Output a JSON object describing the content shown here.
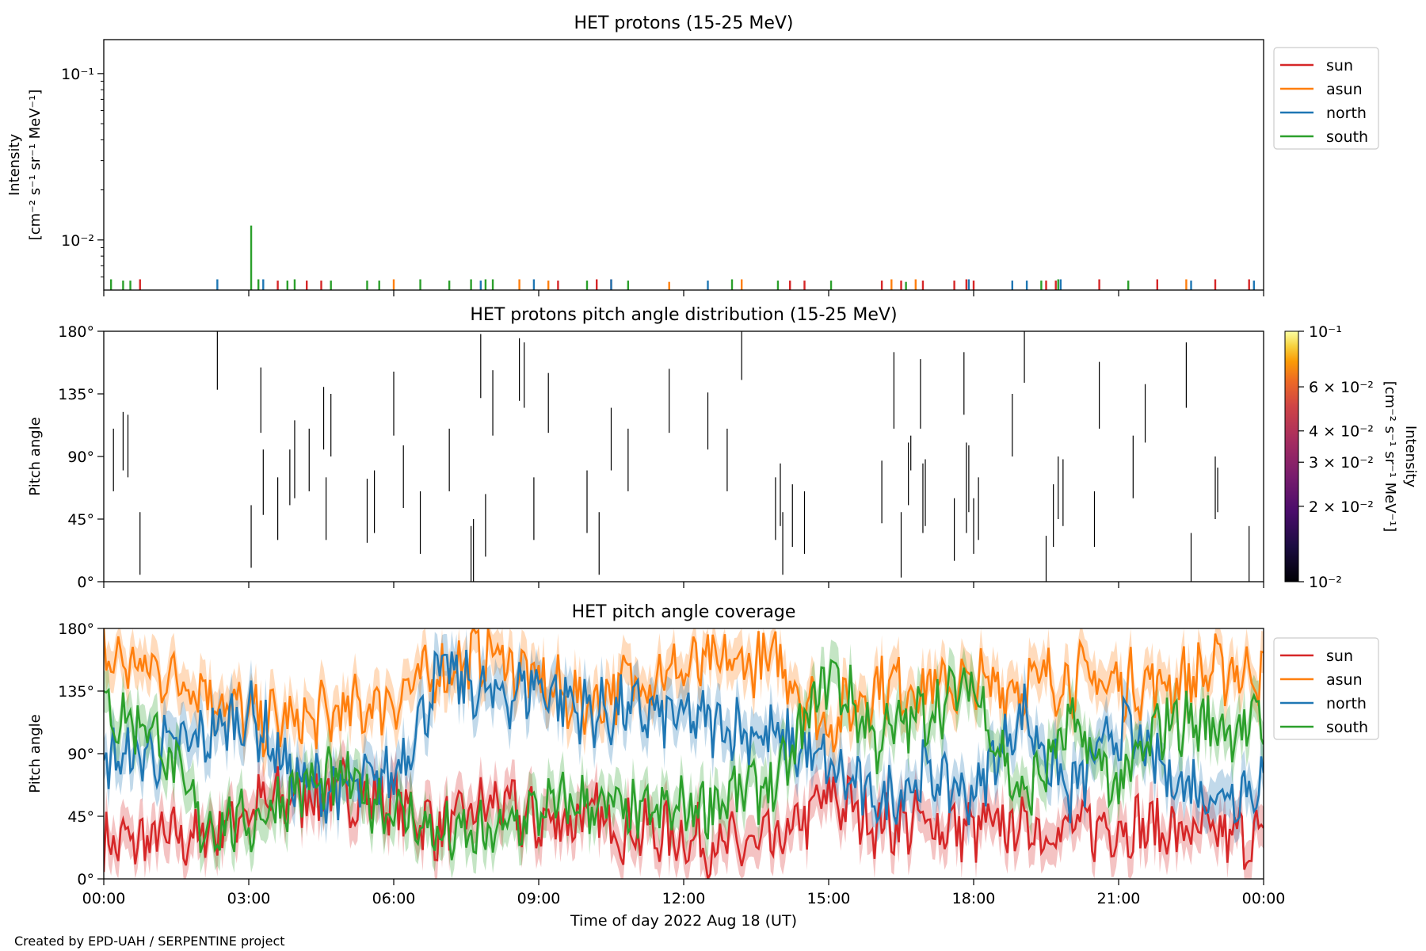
{
  "credit": "Created by EPD-UAH / SERPENTINE project",
  "colors": {
    "sun": "#d62728",
    "asun": "#ff7f0e",
    "north": "#1f77b4",
    "south": "#2ca02c"
  },
  "chart_data": [
    {
      "type": "line",
      "title": "HET protons (15-25 MeV)",
      "ylabel_line1": "Intensity",
      "ylabel_line2": "[cm⁻² s⁻¹ sr⁻¹ MeV⁻¹]",
      "yscale": "log",
      "ylim": [
        0.005,
        0.16
      ],
      "yticks": [
        {
          "value": 0.1,
          "label": "10⁻¹"
        },
        {
          "value": 0.01,
          "label": "10⁻²"
        }
      ],
      "xlim_hours": [
        0,
        24
      ],
      "legend": {
        "placement": "outside-top-right",
        "entries": [
          "sun",
          "asun",
          "north",
          "south"
        ]
      },
      "series": [
        {
          "name": "sun",
          "color": "#d62728",
          "spikes": [
            [
              0.75,
              0.0058
            ],
            [
              3.6,
              0.0057
            ],
            [
              4.2,
              0.0057
            ],
            [
              4.5,
              0.0057
            ],
            [
              9.4,
              0.0057
            ],
            [
              10.2,
              0.0058
            ],
            [
              10.5,
              0.0058
            ],
            [
              14.2,
              0.0057
            ],
            [
              14.5,
              0.0057
            ],
            [
              16.1,
              0.0057
            ],
            [
              16.5,
              0.0057
            ],
            [
              16.95,
              0.0057
            ],
            [
              17.6,
              0.0057
            ],
            [
              17.85,
              0.0058
            ],
            [
              18.0,
              0.0057
            ],
            [
              19.5,
              0.0057
            ],
            [
              19.7,
              0.0057
            ],
            [
              20.6,
              0.0058
            ],
            [
              21.8,
              0.0058
            ],
            [
              23.0,
              0.0058
            ],
            [
              23.7,
              0.0058
            ]
          ]
        },
        {
          "name": "asun",
          "color": "#ff7f0e",
          "spikes": [
            [
              6.0,
              0.0058
            ],
            [
              8.6,
              0.0058
            ],
            [
              9.2,
              0.0057
            ],
            [
              11.7,
              0.0056
            ],
            [
              13.2,
              0.0058
            ],
            [
              16.3,
              0.0058
            ],
            [
              16.8,
              0.0058
            ],
            [
              22.4,
              0.0058
            ]
          ]
        },
        {
          "name": "north",
          "color": "#1f77b4",
          "spikes": [
            [
              2.35,
              0.0058
            ],
            [
              3.3,
              0.0058
            ],
            [
              7.8,
              0.0057
            ],
            [
              8.9,
              0.0058
            ],
            [
              10.5,
              0.0058
            ],
            [
              12.5,
              0.0057
            ],
            [
              17.9,
              0.0058
            ],
            [
              18.8,
              0.0057
            ],
            [
              19.1,
              0.0057
            ],
            [
              19.8,
              0.0058
            ],
            [
              22.5,
              0.0057
            ],
            [
              23.8,
              0.0057
            ]
          ]
        },
        {
          "name": "south",
          "color": "#2ca02c",
          "spikes": [
            [
              0.15,
              0.0058
            ],
            [
              0.4,
              0.0057
            ],
            [
              0.55,
              0.0057
            ],
            [
              3.05,
              0.0122
            ],
            [
              3.2,
              0.0058
            ],
            [
              3.8,
              0.0057
            ],
            [
              3.95,
              0.0058
            ],
            [
              4.7,
              0.0057
            ],
            [
              5.45,
              0.0057
            ],
            [
              5.7,
              0.0057
            ],
            [
              6.55,
              0.0058
            ],
            [
              7.15,
              0.0057
            ],
            [
              7.6,
              0.0058
            ],
            [
              7.9,
              0.0058
            ],
            [
              8.05,
              0.0058
            ],
            [
              10.0,
              0.0057
            ],
            [
              10.85,
              0.0057
            ],
            [
              13.0,
              0.0058
            ],
            [
              13.95,
              0.0057
            ],
            [
              15.05,
              0.0057
            ],
            [
              16.6,
              0.0056
            ],
            [
              19.4,
              0.0057
            ],
            [
              19.75,
              0.0058
            ],
            [
              21.2,
              0.0057
            ]
          ]
        }
      ]
    },
    {
      "type": "heatmap",
      "title": "HET protons pitch angle distribution (15-25 MeV)",
      "ylabel": "Pitch angle",
      "ylim": [
        0,
        180
      ],
      "yticks": [
        {
          "value": 0,
          "label": "0°"
        },
        {
          "value": 45,
          "label": "45°"
        },
        {
          "value": 90,
          "label": "90°"
        },
        {
          "value": 135,
          "label": "135°"
        },
        {
          "value": 180,
          "label": "180°"
        }
      ],
      "xlim_hours": [
        0,
        24
      ],
      "colorbar": {
        "label_line1": "Intensity",
        "label_line2": "[cm⁻² s⁻¹ sr⁻¹ MeV⁻¹]",
        "scale": "log",
        "range": [
          0.01,
          0.1
        ],
        "ticks": [
          {
            "value": 0.1,
            "label": "10⁻¹"
          },
          {
            "value": 0.06,
            "label": "6 × 10⁻²"
          },
          {
            "value": 0.04,
            "label": "4 × 10⁻²"
          },
          {
            "value": 0.03,
            "label": "3 × 10⁻²"
          },
          {
            "value": 0.02,
            "label": "2 × 10⁻²"
          },
          {
            "value": 0.01,
            "label": "10⁻²"
          }
        ]
      },
      "segments": [
        [
          0.2,
          65,
          110
        ],
        [
          0.4,
          80,
          122
        ],
        [
          0.5,
          75,
          120
        ],
        [
          0.75,
          5,
          50
        ],
        [
          2.35,
          138,
          180
        ],
        [
          3.05,
          10,
          55
        ],
        [
          3.25,
          107,
          154
        ],
        [
          3.3,
          48,
          95
        ],
        [
          3.6,
          30,
          75
        ],
        [
          3.85,
          55,
          95
        ],
        [
          3.95,
          60,
          116
        ],
        [
          4.25,
          65,
          110
        ],
        [
          4.55,
          95,
          140
        ],
        [
          4.7,
          90,
          135
        ],
        [
          4.6,
          30,
          75
        ],
        [
          5.45,
          28,
          74
        ],
        [
          5.6,
          35,
          80
        ],
        [
          6.0,
          105,
          151
        ],
        [
          6.2,
          53,
          98
        ],
        [
          6.55,
          20,
          65
        ],
        [
          7.15,
          65,
          110
        ],
        [
          7.6,
          0,
          40
        ],
        [
          7.65,
          0,
          45
        ],
        [
          7.8,
          132,
          178
        ],
        [
          7.9,
          18,
          63
        ],
        [
          8.05,
          105,
          152
        ],
        [
          8.6,
          130,
          175
        ],
        [
          8.7,
          125,
          172
        ],
        [
          9.2,
          107,
          150
        ],
        [
          8.9,
          30,
          75
        ],
        [
          10.0,
          35,
          80
        ],
        [
          10.25,
          5,
          50
        ],
        [
          10.5,
          80,
          125
        ],
        [
          10.85,
          65,
          110
        ],
        [
          11.7,
          107,
          153
        ],
        [
          12.5,
          95,
          136
        ],
        [
          12.9,
          65,
          110
        ],
        [
          13.2,
          145,
          180
        ],
        [
          13.9,
          30,
          75
        ],
        [
          14.0,
          40,
          85
        ],
        [
          14.05,
          5,
          50
        ],
        [
          14.25,
          25,
          70
        ],
        [
          14.5,
          20,
          65
        ],
        [
          16.1,
          42,
          87
        ],
        [
          16.35,
          110,
          165
        ],
        [
          16.5,
          3,
          50
        ],
        [
          16.65,
          55,
          100
        ],
        [
          16.7,
          80,
          105
        ],
        [
          16.9,
          110,
          160
        ],
        [
          16.95,
          35,
          85
        ],
        [
          17.0,
          40,
          88
        ],
        [
          17.6,
          15,
          60
        ],
        [
          17.8,
          120,
          165
        ],
        [
          17.85,
          35,
          100
        ],
        [
          17.9,
          50,
          98
        ],
        [
          18.0,
          20,
          60
        ],
        [
          18.1,
          30,
          75
        ],
        [
          18.8,
          90,
          135
        ],
        [
          19.05,
          143,
          180
        ],
        [
          19.5,
          0,
          33
        ],
        [
          19.65,
          25,
          70
        ],
        [
          19.75,
          45,
          90
        ],
        [
          19.85,
          40,
          88
        ],
        [
          20.6,
          110,
          158
        ],
        [
          20.5,
          25,
          65
        ],
        [
          21.3,
          60,
          105
        ],
        [
          21.55,
          100,
          142
        ],
        [
          22.4,
          125,
          172
        ],
        [
          22.5,
          0,
          35
        ],
        [
          23.0,
          45,
          90
        ],
        [
          23.05,
          50,
          82
        ],
        [
          23.7,
          0,
          40
        ]
      ]
    },
    {
      "type": "line",
      "title": "HET pitch angle coverage",
      "ylabel": "Pitch angle",
      "xlabel": "Time of day 2022 Aug 18 (UT)",
      "ylim": [
        0,
        180
      ],
      "yticks": [
        {
          "value": 0,
          "label": "0°"
        },
        {
          "value": 45,
          "label": "45°"
        },
        {
          "value": 90,
          "label": "90°"
        },
        {
          "value": 135,
          "label": "135°"
        },
        {
          "value": 180,
          "label": "180°"
        }
      ],
      "xlim_hours": [
        0,
        24
      ],
      "xticks": [
        {
          "value": 0,
          "label": "00:00"
        },
        {
          "value": 3,
          "label": "03:00"
        },
        {
          "value": 6,
          "label": "06:00"
        },
        {
          "value": 9,
          "label": "09:00"
        },
        {
          "value": 12,
          "label": "12:00"
        },
        {
          "value": 15,
          "label": "15:00"
        },
        {
          "value": 18,
          "label": "18:00"
        },
        {
          "value": 21,
          "label": "21:00"
        },
        {
          "value": 24,
          "label": "00:00"
        }
      ],
      "legend": {
        "placement": "outside-top-right",
        "entries": [
          "sun",
          "asun",
          "north",
          "south"
        ]
      },
      "band_halfwidth_deg": 15,
      "series": [
        {
          "name": "sun",
          "color": "#d62728",
          "x": [
            0,
            1,
            2,
            3,
            4,
            5,
            6,
            7,
            8,
            9,
            10,
            11,
            12,
            13,
            14,
            15,
            16,
            17,
            18,
            19,
            20,
            21,
            22,
            23,
            24
          ],
          "y": [
            25,
            28,
            30,
            50,
            60,
            62,
            55,
            35,
            55,
            40,
            45,
            35,
            30,
            22,
            25,
            60,
            40,
            40,
            35,
            38,
            35,
            40,
            35,
            30,
            30
          ]
        },
        {
          "name": "asun",
          "color": "#ff7f0e",
          "x": [
            0,
            1,
            2,
            3,
            4,
            5,
            6,
            7,
            8,
            9,
            10,
            11,
            12,
            13,
            14,
            15,
            16,
            17,
            18,
            19,
            20,
            21,
            22,
            23,
            24
          ],
          "y": [
            160,
            150,
            140,
            115,
            112,
            120,
            130,
            150,
            165,
            140,
            125,
            145,
            150,
            155,
            155,
            110,
            140,
            138,
            140,
            140,
            145,
            140,
            140,
            150,
            150
          ]
        },
        {
          "name": "north",
          "color": "#1f77b4",
          "x": [
            0,
            1,
            2,
            3,
            4,
            5,
            6,
            7,
            8,
            9,
            10,
            11,
            12,
            13,
            14,
            15,
            16,
            17,
            18,
            19,
            20,
            21,
            22,
            23,
            24
          ],
          "y": [
            85,
            90,
            100,
            120,
            70,
            62,
            75,
            150,
            130,
            140,
            120,
            120,
            115,
            110,
            100,
            80,
            55,
            75,
            60,
            120,
            60,
            110,
            75,
            60,
            70
          ]
        },
        {
          "name": "south",
          "color": "#2ca02c",
          "x": [
            0,
            1,
            2,
            3,
            4,
            5,
            6,
            7,
            8,
            9,
            10,
            11,
            12,
            13,
            14,
            15,
            16,
            17,
            18,
            19,
            20,
            21,
            22,
            23,
            24
          ],
          "y": [
            120,
            110,
            40,
            40,
            65,
            70,
            50,
            30,
            30,
            50,
            55,
            45,
            50,
            60,
            70,
            150,
            100,
            120,
            140,
            55,
            110,
            65,
            115,
            110,
            110
          ]
        }
      ]
    }
  ]
}
